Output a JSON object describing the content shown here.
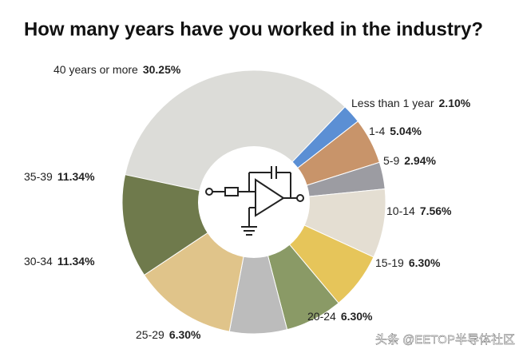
{
  "chart_data": {
    "type": "pie",
    "title": "How many years have you worked in the industry?",
    "categories": [
      "40 years or more",
      "Less than 1 year",
      "1-4",
      "5-9",
      "10-14",
      "15-19",
      "20-24",
      "25-29",
      "30-34",
      "35-39"
    ],
    "values": [
      30.25,
      2.1,
      5.04,
      2.94,
      7.56,
      6.3,
      6.3,
      6.3,
      11.34,
      11.34
    ],
    "value_labels": [
      "30.25%",
      "2.10%",
      "5.04%",
      "2.94%",
      "7.56%",
      "6.30%",
      "6.30%",
      "6.30%",
      "11.34%",
      "11.34%"
    ],
    "colors": [
      "#dcdcd8",
      "#5b8fd4",
      "#c8946a",
      "#9c9ca2",
      "#e4ded2",
      "#e6c55a",
      "#8a9a66",
      "#bcbcbc",
      "#e0c48a",
      "#6f7a4c"
    ],
    "watermark": "头条 @EETOP半导体社区"
  }
}
